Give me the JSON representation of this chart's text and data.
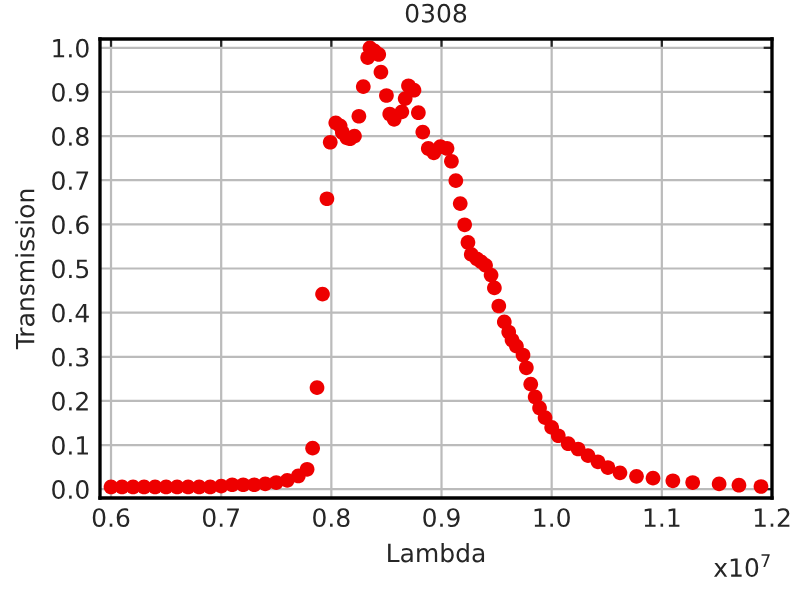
{
  "chart_data": {
    "type": "scatter",
    "title": "0308",
    "xlabel": "Lambda",
    "ylabel": "Transmission",
    "annotations": [
      "x10$^{7}$"
    ],
    "series": [
      {
        "color": "#ee0000",
        "x": [
          0.6,
          0.61,
          0.62,
          0.63,
          0.64,
          0.65,
          0.66,
          0.67,
          0.68,
          0.69,
          0.7,
          0.71,
          0.72,
          0.73,
          0.74,
          0.75,
          0.76,
          0.77,
          0.778,
          0.783,
          0.787,
          0.792,
          0.796,
          0.799,
          0.804,
          0.808,
          0.81,
          0.814,
          0.817,
          0.821,
          0.825,
          0.829,
          0.833,
          0.835,
          0.839,
          0.843,
          0.845,
          0.85,
          0.853,
          0.857,
          0.864,
          0.867,
          0.87,
          0.875,
          0.879,
          0.883,
          0.888,
          0.893,
          0.899,
          0.905,
          0.909,
          0.913,
          0.917,
          0.921,
          0.924,
          0.927,
          0.932,
          0.936,
          0.94,
          0.945,
          0.948,
          0.952,
          0.957,
          0.961,
          0.964,
          0.968,
          0.974,
          0.977,
          0.981,
          0.985,
          0.989,
          0.994,
          1.0,
          1.006,
          1.015,
          1.024,
          1.033,
          1.042,
          1.051,
          1.062,
          1.077,
          1.092,
          1.11,
          1.128,
          1.152,
          1.17,
          1.19
        ],
        "values": [
          0.005,
          0.005,
          0.005,
          0.005,
          0.005,
          0.005,
          0.005,
          0.005,
          0.005,
          0.005,
          0.007,
          0.01,
          0.01,
          0.01,
          0.012,
          0.015,
          0.02,
          0.03,
          0.045,
          0.093,
          0.23,
          0.442,
          0.658,
          0.786,
          0.83,
          0.823,
          0.808,
          0.796,
          0.794,
          0.8,
          0.845,
          0.912,
          0.978,
          1.0,
          0.993,
          0.985,
          0.945,
          0.892,
          0.85,
          0.838,
          0.855,
          0.885,
          0.914,
          0.904,
          0.853,
          0.809,
          0.772,
          0.762,
          0.776,
          0.772,
          0.743,
          0.699,
          0.647,
          0.599,
          0.559,
          0.532,
          0.522,
          0.515,
          0.507,
          0.485,
          0.456,
          0.415,
          0.379,
          0.356,
          0.338,
          0.324,
          0.304,
          0.275,
          0.238,
          0.209,
          0.184,
          0.162,
          0.14,
          0.121,
          0.103,
          0.091,
          0.076,
          0.062,
          0.049,
          0.037,
          0.029,
          0.025,
          0.019,
          0.015,
          0.012,
          0.009,
          0.006
        ]
      }
    ],
    "marker": "circle",
    "grid": true,
    "legend": false,
    "xlim": [
      0.59,
      1.2
    ],
    "ylim": [
      -0.02,
      1.02
    ],
    "xticks": [
      0.6,
      0.7,
      0.8,
      0.9,
      {
        "value": 1,
        "label": "1.0"
      },
      1.1,
      1.2
    ],
    "yticks": [
      {
        "value": 0,
        "label": "0.0"
      },
      0.1,
      0.2,
      0.3,
      0.4,
      0.5,
      0.6,
      0.7,
      0.8,
      0.9,
      {
        "value": 1,
        "label": "1.0"
      }
    ]
  }
}
